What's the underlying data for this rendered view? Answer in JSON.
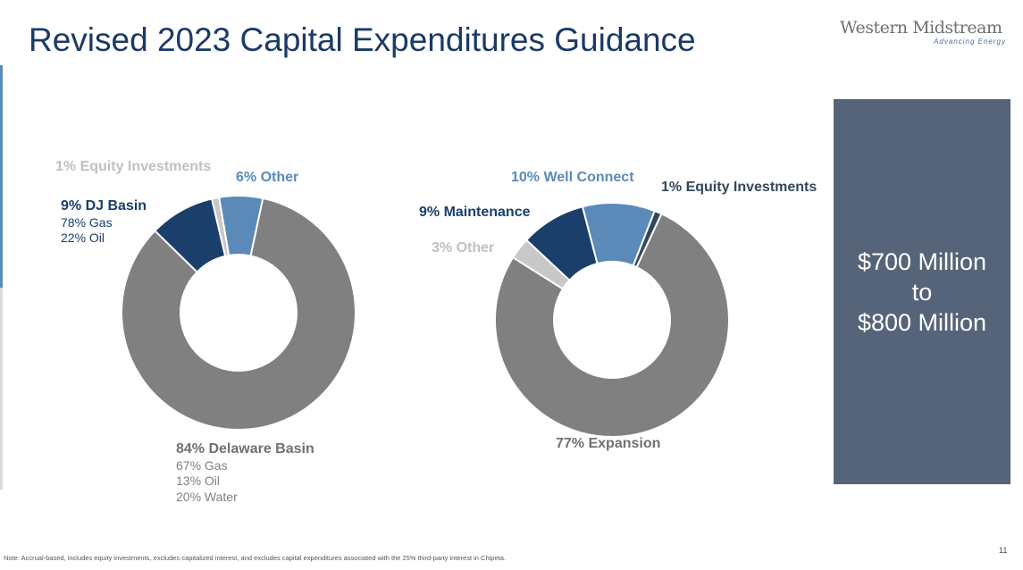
{
  "title": "Revised 2023 Capital Expenditures Guidance",
  "logo": {
    "name": "Western Midstream",
    "tagline": "Advancing Energy"
  },
  "chart_data": [
    {
      "type": "pie",
      "donut": true,
      "start_angle_deg": 12,
      "slices": [
        {
          "label": "84% Delaware Basin",
          "value": 84,
          "color": "#808080",
          "details": [
            "67% Gas",
            "13% Oil",
            "20% Water"
          ]
        },
        {
          "label": "9% DJ Basin",
          "value": 9,
          "color": "#1a3f6b",
          "details": [
            "78% Gas",
            "22% Oil"
          ]
        },
        {
          "label": "1% Equity Investments",
          "value": 1,
          "color": "#c8c8c8"
        },
        {
          "label": "6% Other",
          "value": 6,
          "color": "#5b8ab8"
        }
      ]
    },
    {
      "type": "pie",
      "donut": true,
      "start_angle_deg": 25,
      "slices": [
        {
          "label": "77% Expansion",
          "value": 77,
          "color": "#808080"
        },
        {
          "label": "3% Other",
          "value": 3,
          "color": "#c8c8c8"
        },
        {
          "label": "9% Maintenance",
          "value": 9,
          "color": "#1a3f6b"
        },
        {
          "label": "10% Well Connect",
          "value": 10,
          "color": "#5b8ab8"
        },
        {
          "label": "1% Equity Investments",
          "value": 1,
          "color": "#33475b"
        }
      ]
    }
  ],
  "summary": {
    "line1": "$700 Million",
    "line2": "to",
    "line3": "$800 Million"
  },
  "note": "Note: Accrual-based, includes equity investments, excludes capitalized interest, and excludes capital expenditures associated with the 25% third-party interest in Chipeta.",
  "page_number": "11"
}
